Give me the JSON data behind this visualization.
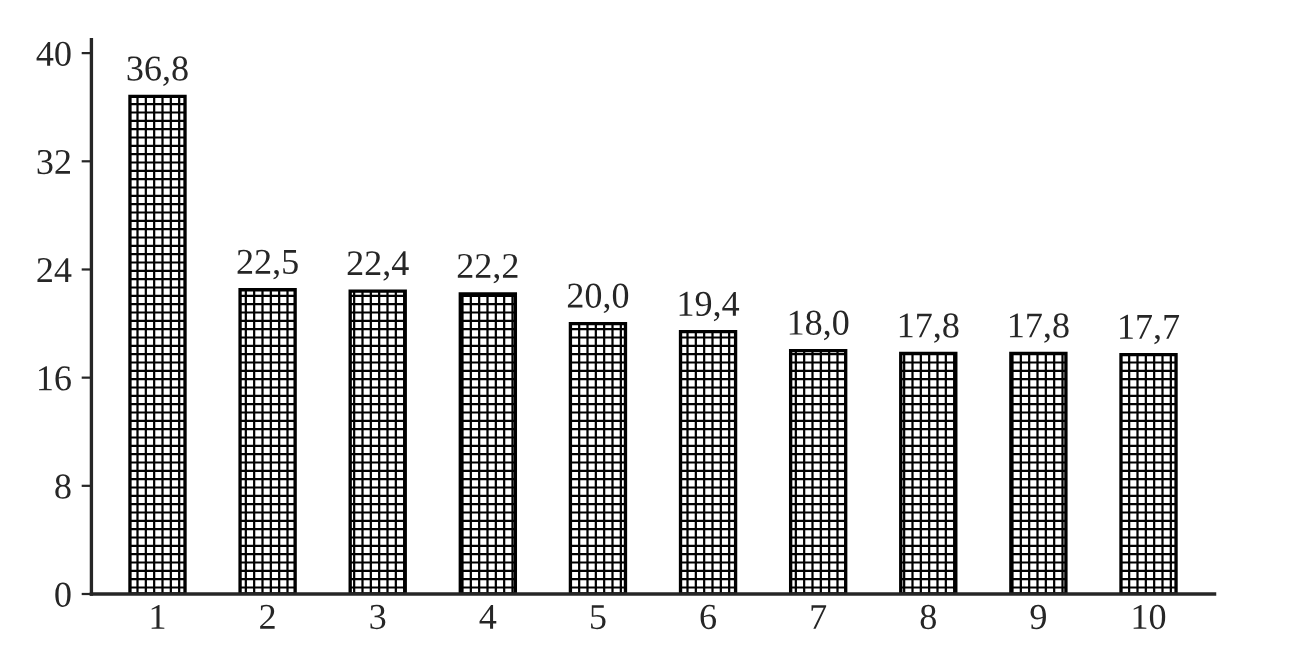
{
  "chart_data": {
    "type": "bar",
    "categories": [
      "1",
      "2",
      "3",
      "4",
      "5",
      "6",
      "7",
      "8",
      "9",
      "10"
    ],
    "values": [
      36.8,
      22.5,
      22.4,
      22.2,
      20.0,
      19.4,
      18.0,
      17.8,
      17.8,
      17.7
    ],
    "value_labels": [
      "36,8",
      "22,5",
      "22,4",
      "22,2",
      "20,0",
      "19,4",
      "18,0",
      "17,8",
      "17,8",
      "17,7"
    ],
    "color": "#000000",
    "ylim": [
      0,
      41
    ],
    "yticks": [
      0,
      8,
      16,
      24,
      32,
      40
    ],
    "grid": false
  }
}
